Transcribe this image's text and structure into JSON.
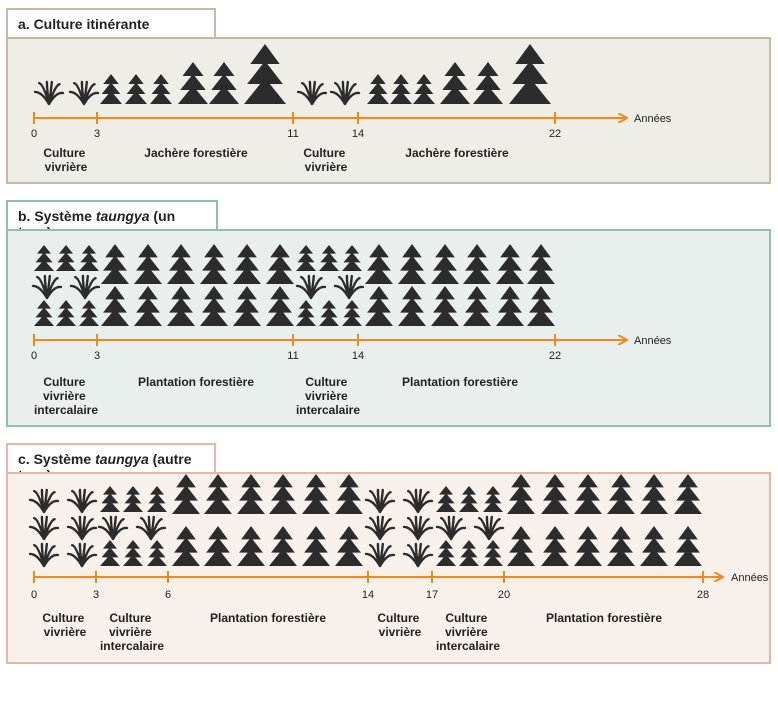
{
  "colors": {
    "panel_a_bg": "#eeede6",
    "panel_a_border": "#c8b9a2",
    "panel_b_bg": "#e9efed",
    "panel_b_border": "#8fbfb1",
    "panel_c_bg": "#f7f0eb",
    "panel_c_border": "#e3b8a6",
    "axis": "#f08a1e",
    "tree": "#2c2c2c"
  },
  "axis_unit": "Années",
  "panels": [
    {
      "title_prefix": "a. Culture itinérante",
      "title_italic": "",
      "title_suffix": "",
      "ticks": [
        "0",
        "3",
        "11",
        "14",
        "22"
      ],
      "labels": [
        [
          "Culture",
          "vivrière"
        ],
        [
          "Jachère forestière"
        ],
        [
          "Culture",
          "vivrière"
        ],
        [
          "Jachère forestière"
        ]
      ]
    },
    {
      "title_prefix": "b. Système ",
      "title_italic": "taungya",
      "title_suffix": " (un type)",
      "ticks": [
        "0",
        "3",
        "11",
        "14",
        "22"
      ],
      "labels": [
        [
          "Culture",
          "vivrière",
          "intercalaire"
        ],
        [
          "Plantation forestière"
        ],
        [
          "Culture",
          "vivrière",
          "intercalaire"
        ],
        [
          "Plantation forestière"
        ]
      ]
    },
    {
      "title_prefix": "c. Système ",
      "title_italic": "taungya",
      "title_suffix": " (autre type)",
      "ticks": [
        "0",
        "3",
        "6",
        "14",
        "17",
        "20",
        "28"
      ],
      "labels": [
        [
          "Culture",
          "vivrière"
        ],
        [
          "Culture",
          "vivrière",
          "intercalaire"
        ],
        [
          "Plantation forestière"
        ],
        [
          "Culture",
          "vivrière"
        ],
        [
          "Culture",
          "vivrière",
          "intercalaire"
        ],
        [
          "Plantation forestière"
        ]
      ]
    }
  ]
}
